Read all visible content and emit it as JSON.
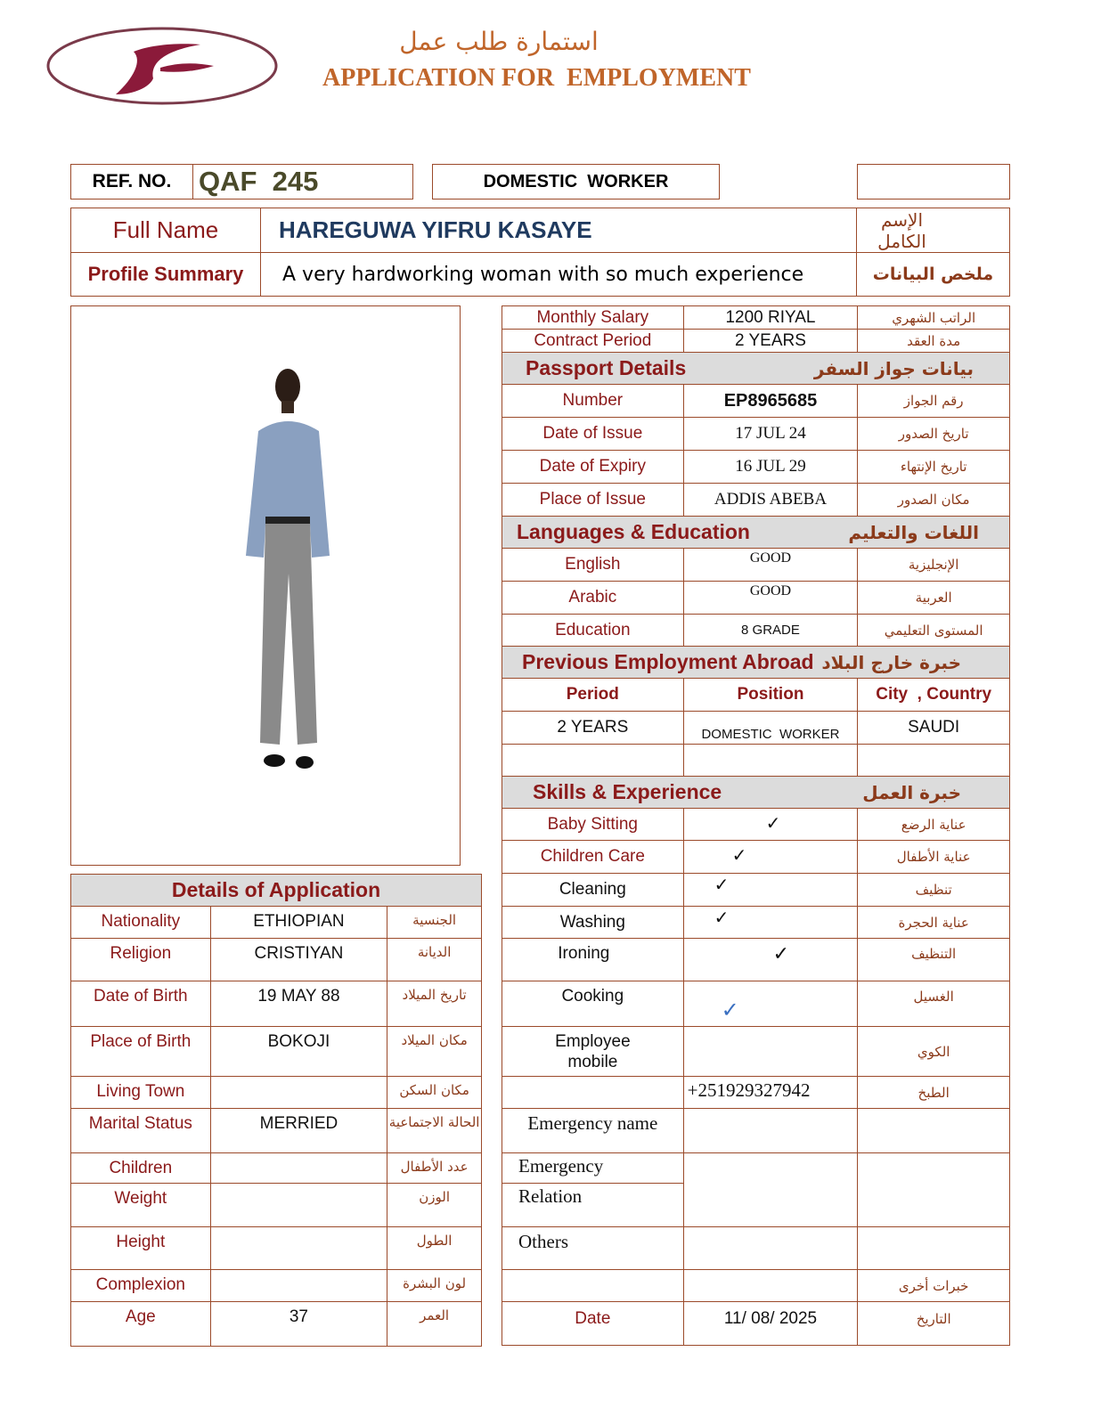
{
  "header": {
    "logo_letter": "F",
    "title_ar": "استمارة طلب عمل",
    "title_en": "APPLICATION FOR  EMPLOYMENT"
  },
  "ref": {
    "label": "REF. NO.",
    "value": "QAF  245",
    "category": "DOMESTIC  WORKER"
  },
  "name": {
    "label": "Full Name",
    "value": "HAREGUWA YIFRU KASAYE",
    "label_ar": "الإسم الكامل"
  },
  "summary": {
    "label": "Profile Summary",
    "value": "A very hardworking woman with so much experience",
    "label_ar": "ملخص البيانات"
  },
  "contract": [
    {
      "label": "Monthly Salary",
      "value": "1200 RIYAL",
      "ar": "الراتب الشهري"
    },
    {
      "label": "Contract Period",
      "value": "2 YEARS",
      "ar": "مدة العقد"
    }
  ],
  "passport": {
    "title": "Passport Details",
    "title_ar": "بيانات جواز السفر",
    "rows": [
      {
        "label": "Number",
        "value": "EP8965685",
        "ar": "رقم الجواز"
      },
      {
        "label": "Date of Issue",
        "value": "17 JUL 24",
        "ar": "تاريخ الصدور"
      },
      {
        "label": "Date of Expiry",
        "value": "16 JUL 29",
        "ar": "تاريخ الإنتهاء"
      },
      {
        "label": "Place of Issue",
        "value": "ADDIS ABEBA",
        "ar": "مكان الصدور"
      }
    ]
  },
  "languages": {
    "title": "Languages & Education",
    "title_ar": "اللغات والتعليم",
    "rows": [
      {
        "label": "English",
        "value": "GOOD",
        "ar": "الإنجليزية"
      },
      {
        "label": "Arabic",
        "value": "GOOD",
        "ar": "العربية"
      },
      {
        "label": "Education",
        "value": "8 GRADE",
        "ar": "المستوى التعليمي"
      }
    ]
  },
  "employment": {
    "title": "Previous Employment Abroad",
    "title_ar": "خبرة خارج البلاد",
    "columns": [
      "Period",
      "Position",
      "City  , Country"
    ],
    "rows": [
      [
        "2 YEARS",
        "DOMESTIC  WORKER",
        "SAUDI"
      ]
    ]
  },
  "skills": {
    "title": "Skills & Experience",
    "title_ar": "خبرة العمل",
    "rows": [
      {
        "label": "Baby Sitting",
        "check": "✓",
        "ar": "عناية الرضع"
      },
      {
        "label": "Children Care",
        "check": "✓",
        "ar": "عناية الأطفال"
      },
      {
        "label": "Cleaning",
        "check": "✓",
        "ar": "تنظيف"
      },
      {
        "label": "Washing",
        "check": "✓",
        "ar": "عناية الحجرة"
      },
      {
        "label": "Ironing",
        "check": "✓",
        "ar": "التنظيف"
      },
      {
        "label": "Cooking",
        "check": "✓",
        "ar": "الغسيل"
      }
    ]
  },
  "contact": {
    "mobile_label": "Employee mobile",
    "mobile_ar": "الكوي",
    "mobile": "+251929327942",
    "mobile_value_ar": "الطبخ",
    "emergency_name": "Emergency name",
    "emergency": "Emergency",
    "relation": "Relation",
    "others": "Others",
    "others_ar": "خبرات أخرى",
    "date_label": "Date",
    "date": "11/ 08/ 2025",
    "date_ar": "التاريخ"
  },
  "details": {
    "title": "Details of Application",
    "rows": [
      {
        "label": "Nationality",
        "value": "ETHIOPIAN",
        "ar": "الجنسية"
      },
      {
        "label": "Religion",
        "value": "CRISTIYAN",
        "ar": "الديانة"
      },
      {
        "label": "Date of Birth",
        "value": "19 MAY 88",
        "ar": "تاريخ الميلاد"
      },
      {
        "label": "Place of Birth",
        "value": "BOKOJI",
        "ar": "مكان الميلاد"
      },
      {
        "label": "Living Town",
        "value": "",
        "ar": "مكان السكن"
      },
      {
        "label": "Marital Status",
        "value": "MERRIED",
        "ar": "الحالة الاجتماعية"
      },
      {
        "label": "Children",
        "value": "",
        "ar": "عدد الأطفال"
      },
      {
        "label": "Weight",
        "value": "",
        "ar": "الوزن"
      },
      {
        "label": "Height",
        "value": "",
        "ar": "الطول"
      },
      {
        "label": "Complexion",
        "value": "",
        "ar": "لون البشرة"
      },
      {
        "label": "Age",
        "value": "37",
        "ar": "العمر"
      }
    ]
  },
  "colors": {
    "label": "#8b1a1a",
    "border": "#9b4a2a",
    "name": "#1f3a5f",
    "header_bg": "#dcdcdc",
    "title": "#c0652a",
    "check_blue": "#3a6fc0"
  }
}
